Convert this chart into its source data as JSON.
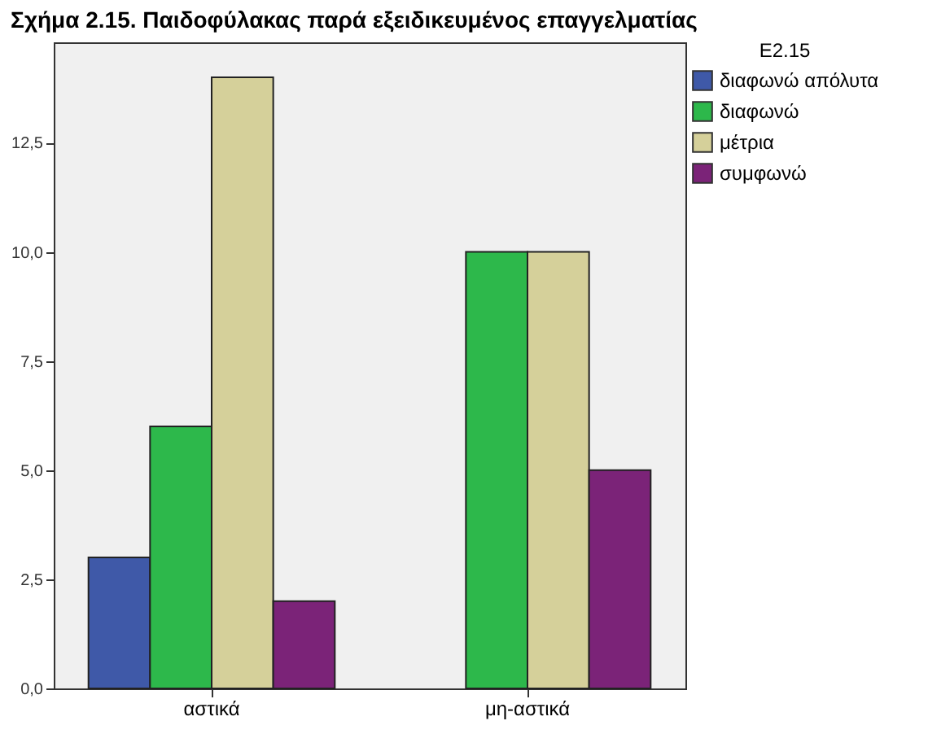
{
  "chart_data": {
    "type": "bar",
    "title": "Σχήμα 2.15. Παιδοφύλακας παρά εξειδικευμένος επαγγελματίας",
    "legend_title": "E2.15",
    "categories": [
      "αστικά",
      "μη-αστικά"
    ],
    "series": [
      {
        "name": "διαφωνώ απόλυτα",
        "color": "#3f59a8",
        "values": [
          3,
          null
        ]
      },
      {
        "name": "διαφωνώ",
        "color": "#2db84b",
        "values": [
          6,
          10
        ]
      },
      {
        "name": "μέτρια",
        "color": "#d5d09a",
        "values": [
          14,
          10
        ]
      },
      {
        "name": "συμφωνώ",
        "color": "#7b2378",
        "values": [
          2,
          5
        ]
      }
    ],
    "ylim": [
      0,
      14.8
    ],
    "yticks": [
      {
        "value": 0,
        "label": "0,0"
      },
      {
        "value": 2.5,
        "label": "2,5"
      },
      {
        "value": 5,
        "label": "5,0"
      },
      {
        "value": 7.5,
        "label": "7,5"
      },
      {
        "value": 10,
        "label": "10,0"
      },
      {
        "value": 12.5,
        "label": "12,5"
      }
    ],
    "grid": false,
    "legend": "top right"
  }
}
